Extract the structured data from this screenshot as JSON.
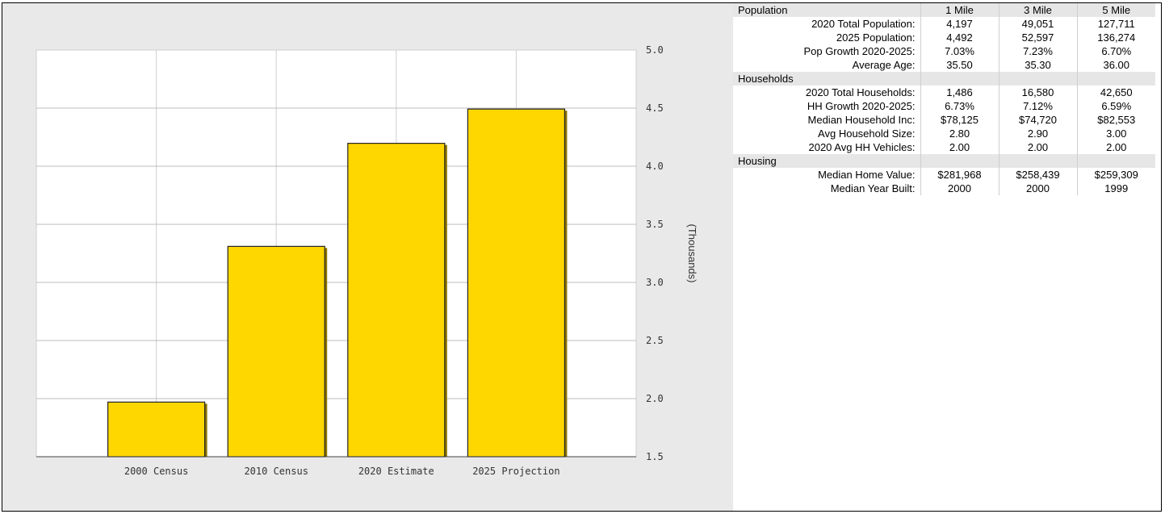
{
  "chart_data": {
    "type": "bar",
    "categories": [
      "2000 Census",
      "2010 Census",
      "2020 Estimate",
      "2025 Projection"
    ],
    "values": [
      1.97,
      3.31,
      4.197,
      4.492
    ],
    "ylabel": "(Thousands)",
    "ylim": [
      1.5,
      5.0
    ],
    "yticks": [
      "5.0",
      "4.5",
      "4.0",
      "3.5",
      "3.0",
      "2.5",
      "2.0",
      "1.5"
    ],
    "grid": true,
    "bar_color": "#ffd700",
    "legend": "none"
  },
  "table": {
    "columns": [
      "1 Mile",
      "3 Mile",
      "5 Mile"
    ],
    "sections": [
      {
        "title": "Population",
        "rows": [
          {
            "label": "2020 Total Population:",
            "values": [
              "4,197",
              "49,051",
              "127,711"
            ]
          },
          {
            "label": "2025 Population:",
            "values": [
              "4,492",
              "52,597",
              "136,274"
            ]
          },
          {
            "label": "Pop Growth 2020-2025:",
            "values": [
              "7.03%",
              "7.23%",
              "6.70%"
            ]
          },
          {
            "label": "Average Age:",
            "values": [
              "35.50",
              "35.30",
              "36.00"
            ]
          }
        ]
      },
      {
        "title": "Households",
        "rows": [
          {
            "label": "2020 Total Households:",
            "values": [
              "1,486",
              "16,580",
              "42,650"
            ]
          },
          {
            "label": "HH Growth 2020-2025:",
            "values": [
              "6.73%",
              "7.12%",
              "6.59%"
            ]
          },
          {
            "label": "Median Household Inc:",
            "values": [
              "$78,125",
              "$74,720",
              "$82,553"
            ]
          },
          {
            "label": "Avg Household Size:",
            "values": [
              "2.80",
              "2.90",
              "3.00"
            ]
          },
          {
            "label": "2020 Avg HH Vehicles:",
            "values": [
              "2.00",
              "2.00",
              "2.00"
            ]
          }
        ]
      },
      {
        "title": "Housing",
        "rows": [
          {
            "label": "Median Home Value:",
            "values": [
              "$281,968",
              "$258,439",
              "$259,309"
            ]
          },
          {
            "label": "Median Year Built:",
            "values": [
              "2000",
              "2000",
              "1999"
            ]
          }
        ]
      }
    ]
  }
}
